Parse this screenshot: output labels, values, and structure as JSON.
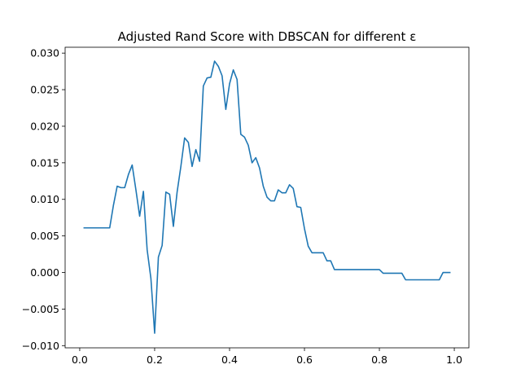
{
  "chart_data": {
    "type": "line",
    "title": "Adjusted Rand Score with DBSCAN for different ε",
    "xlabel": "",
    "ylabel": "",
    "xlim": [
      -0.039,
      1.039
    ],
    "ylim": [
      -0.0103,
      0.0308
    ],
    "grid": false,
    "x_ticks": [
      0.0,
      0.2,
      0.4,
      0.6,
      0.8,
      1.0
    ],
    "x_tick_labels": [
      "0.0",
      "0.2",
      "0.4",
      "0.6",
      "0.8",
      "1.0"
    ],
    "y_ticks": [
      -0.01,
      -0.005,
      0.0,
      0.005,
      0.01,
      0.015,
      0.02,
      0.025,
      0.03
    ],
    "y_tick_labels": [
      "−0.010",
      "−0.005",
      "0.000",
      "0.005",
      "0.010",
      "0.015",
      "0.020",
      "0.025",
      "0.030"
    ],
    "colors": {
      "line": "#1f77b4"
    },
    "series": [
      {
        "x": [
          0.01,
          0.02,
          0.03,
          0.04,
          0.05,
          0.06,
          0.07,
          0.08,
          0.09,
          0.1,
          0.11,
          0.12,
          0.13,
          0.14,
          0.15,
          0.16,
          0.17,
          0.18,
          0.19,
          0.2,
          0.21,
          0.22,
          0.23,
          0.24,
          0.25,
          0.26,
          0.27,
          0.28,
          0.29,
          0.3,
          0.31,
          0.32,
          0.33,
          0.34,
          0.35,
          0.36,
          0.37,
          0.38,
          0.39,
          0.4,
          0.41,
          0.42,
          0.43,
          0.44,
          0.45,
          0.46,
          0.47,
          0.48,
          0.49,
          0.5,
          0.51,
          0.52,
          0.53,
          0.54,
          0.55,
          0.56,
          0.57,
          0.58,
          0.59,
          0.6,
          0.61,
          0.62,
          0.63,
          0.64,
          0.65,
          0.66,
          0.67,
          0.68,
          0.69,
          0.7,
          0.71,
          0.72,
          0.73,
          0.74,
          0.75,
          0.76,
          0.77,
          0.78,
          0.79,
          0.8,
          0.81,
          0.82,
          0.83,
          0.84,
          0.85,
          0.86,
          0.87,
          0.88,
          0.89,
          0.9,
          0.91,
          0.92,
          0.93,
          0.94,
          0.95,
          0.96,
          0.97,
          0.98,
          0.99
        ],
        "values": [
          0.0061,
          0.0061,
          0.0061,
          0.0061,
          0.0061,
          0.0061,
          0.0061,
          0.0061,
          0.0092,
          0.0118,
          0.0116,
          0.0116,
          0.0134,
          0.0147,
          0.0113,
          0.0077,
          0.0111,
          0.0031,
          -0.0008,
          -0.0083,
          0.0021,
          0.0037,
          0.011,
          0.0107,
          0.0063,
          0.011,
          0.0145,
          0.0184,
          0.0178,
          0.0145,
          0.0168,
          0.0152,
          0.0255,
          0.0266,
          0.0267,
          0.0289,
          0.0282,
          0.0269,
          0.0223,
          0.0258,
          0.0277,
          0.0264,
          0.0189,
          0.0185,
          0.0174,
          0.015,
          0.0157,
          0.0143,
          0.0118,
          0.0103,
          0.0098,
          0.0098,
          0.0113,
          0.0109,
          0.0109,
          0.012,
          0.0115,
          0.009,
          0.0089,
          0.006,
          0.0036,
          0.0027,
          0.0027,
          0.0027,
          0.0027,
          0.0016,
          0.0016,
          0.0004,
          0.0004,
          0.0004,
          0.0004,
          0.0004,
          0.0004,
          0.0004,
          0.0004,
          0.0004,
          0.0004,
          0.0004,
          0.0004,
          0.0004,
          -0.0001,
          -0.0001,
          -0.0001,
          -0.0001,
          -0.0001,
          -0.0001,
          -0.001,
          -0.001,
          -0.001,
          -0.001,
          -0.001,
          -0.001,
          -0.001,
          -0.001,
          -0.001,
          -0.001,
          0.0,
          0.0,
          0.0
        ]
      }
    ]
  }
}
